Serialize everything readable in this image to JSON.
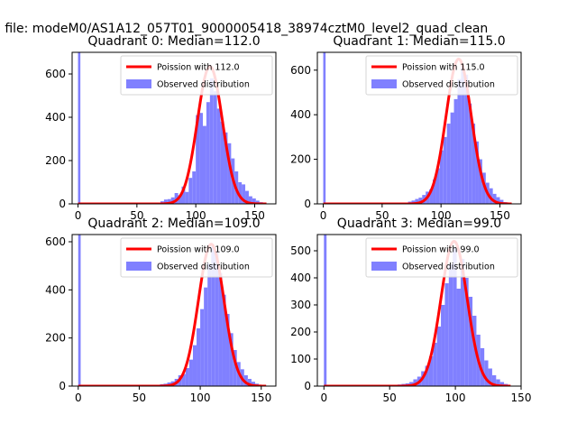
{
  "figure": {
    "suptitle": "n file: modeM0/AS1A12_057T01_9000005418_38974cztM0_level2_quad_clean"
  },
  "colors": {
    "poisson_line": "#ff0000",
    "observed_bars": "#8080ff",
    "axes": "#000000",
    "background": "#ffffff"
  },
  "chart_data": [
    {
      "type": "bar",
      "title": "Quadrant 0: Median=112.0",
      "xlabel": "",
      "ylabel": "",
      "xlim": [
        -5,
        168
      ],
      "ylim": [
        0,
        700
      ],
      "xticks": [
        0,
        50,
        100,
        150
      ],
      "yticks": [
        0,
        200,
        400,
        600
      ],
      "grid": false,
      "legend_position": "top-right",
      "legend": [
        "Poission with 112.0",
        "Observed distribution"
      ],
      "series": [
        {
          "name": "Poission with 112.0",
          "kind": "line",
          "mean": 112.0,
          "peak": 635
        },
        {
          "name": "Observed distribution",
          "kind": "histogram",
          "bins": [
            [
              0,
              2,
              700
            ],
            [
              64,
              67,
              3
            ],
            [
              67,
              70,
              5
            ],
            [
              70,
              73,
              12
            ],
            [
              73,
              76,
              20
            ],
            [
              76,
              79,
              22
            ],
            [
              79,
              82,
              30
            ],
            [
              82,
              85,
              50
            ],
            [
              85,
              88,
              40
            ],
            [
              88,
              91,
              80
            ],
            [
              91,
              94,
              55
            ],
            [
              94,
              97,
              120
            ],
            [
              97,
              100,
              150
            ],
            [
              100,
              103,
              410
            ],
            [
              103,
              106,
              420
            ],
            [
              106,
              109,
              360
            ],
            [
              109,
              112,
              470
            ],
            [
              112,
              115,
              580
            ],
            [
              115,
              118,
              520
            ],
            [
              118,
              121,
              440
            ],
            [
              121,
              124,
              380
            ],
            [
              124,
              127,
              330
            ],
            [
              127,
              130,
              280
            ],
            [
              130,
              133,
              210
            ],
            [
              133,
              136,
              150
            ],
            [
              136,
              139,
              100
            ],
            [
              139,
              142,
              90
            ],
            [
              142,
              145,
              60
            ],
            [
              145,
              148,
              35
            ],
            [
              148,
              151,
              25
            ],
            [
              151,
              154,
              15
            ],
            [
              154,
              157,
              8
            ]
          ]
        }
      ]
    },
    {
      "type": "bar",
      "title": "Quadrant 1: Median=115.0",
      "xlabel": "",
      "ylabel": "",
      "xlim": [
        -5,
        168
      ],
      "ylim": [
        0,
        680
      ],
      "xticks": [
        0,
        50,
        100,
        150
      ],
      "yticks": [
        0,
        200,
        400,
        600
      ],
      "grid": false,
      "legend_position": "top-right",
      "legend": [
        "Poission with 115.0",
        "Observed distribution"
      ],
      "series": [
        {
          "name": "Poission with 115.0",
          "kind": "line",
          "mean": 115.0,
          "peak": 650
        },
        {
          "name": "Observed distribution",
          "kind": "histogram",
          "bins": [
            [
              0,
              2,
              680
            ],
            [
              66,
              69,
              3
            ],
            [
              69,
              72,
              5
            ],
            [
              72,
              75,
              10
            ],
            [
              75,
              78,
              15
            ],
            [
              78,
              81,
              22
            ],
            [
              81,
              84,
              28
            ],
            [
              84,
              87,
              40
            ],
            [
              87,
              90,
              55
            ],
            [
              90,
              93,
              65
            ],
            [
              93,
              96,
              110
            ],
            [
              96,
              99,
              160
            ],
            [
              99,
              102,
              240
            ],
            [
              102,
              105,
              300
            ],
            [
              105,
              108,
              360
            ],
            [
              108,
              111,
              410
            ],
            [
              111,
              114,
              470
            ],
            [
              114,
              117,
              560
            ],
            [
              117,
              120,
              620
            ],
            [
              120,
              123,
              580
            ],
            [
              123,
              126,
              450
            ],
            [
              126,
              129,
              360
            ],
            [
              129,
              132,
              280
            ],
            [
              132,
              135,
              200
            ],
            [
              135,
              138,
              140
            ],
            [
              138,
              141,
              95
            ],
            [
              141,
              144,
              70
            ],
            [
              144,
              147,
              45
            ],
            [
              147,
              150,
              30
            ],
            [
              150,
              153,
              18
            ],
            [
              153,
              156,
              8
            ]
          ]
        }
      ]
    },
    {
      "type": "bar",
      "title": "Quadrant 2: Median=109.0",
      "xlabel": "",
      "ylabel": "",
      "xlim": [
        -5,
        162
      ],
      "ylim": [
        0,
        630
      ],
      "xticks": [
        0,
        50,
        100,
        150
      ],
      "yticks": [
        0,
        200,
        400,
        600
      ],
      "grid": false,
      "legend_position": "top-right",
      "legend": [
        "Poission with 109.0",
        "Observed distribution"
      ],
      "series": [
        {
          "name": "Poission with 109.0",
          "kind": "line",
          "mean": 109.0,
          "peak": 590
        },
        {
          "name": "Observed distribution",
          "kind": "histogram",
          "bins": [
            [
              0,
              2,
              630
            ],
            [
              64,
              67,
              5
            ],
            [
              67,
              70,
              8
            ],
            [
              70,
              73,
              10
            ],
            [
              73,
              76,
              15
            ],
            [
              76,
              79,
              20
            ],
            [
              79,
              82,
              30
            ],
            [
              82,
              85,
              45
            ],
            [
              85,
              88,
              50
            ],
            [
              88,
              91,
              75
            ],
            [
              91,
              94,
              110
            ],
            [
              94,
              97,
              170
            ],
            [
              97,
              100,
              240
            ],
            [
              100,
              103,
              320
            ],
            [
              103,
              106,
              410
            ],
            [
              106,
              109,
              510
            ],
            [
              109,
              112,
              580
            ],
            [
              112,
              115,
              560
            ],
            [
              115,
              118,
              470
            ],
            [
              118,
              121,
              380
            ],
            [
              121,
              124,
              300
            ],
            [
              124,
              127,
              220
            ],
            [
              127,
              130,
              150
            ],
            [
              130,
              133,
              100
            ],
            [
              133,
              136,
              70
            ],
            [
              136,
              139,
              45
            ],
            [
              139,
              142,
              30
            ],
            [
              142,
              145,
              18
            ],
            [
              145,
              148,
              10
            ],
            [
              148,
              151,
              5
            ]
          ]
        }
      ]
    },
    {
      "type": "bar",
      "title": "Quadrant 3: Median=99.0",
      "xlabel": "",
      "ylabel": "",
      "xlim": [
        -5,
        150
      ],
      "ylim": [
        0,
        560
      ],
      "xticks": [
        0,
        50,
        100,
        150
      ],
      "yticks": [
        0,
        100,
        200,
        300,
        400,
        500
      ],
      "grid": false,
      "legend_position": "top-right",
      "legend": [
        "Poission with 99.0",
        "Observed distribution"
      ],
      "series": [
        {
          "name": "Poission with 99.0",
          "kind": "line",
          "mean": 99.0,
          "peak": 535
        },
        {
          "name": "Observed distribution",
          "kind": "histogram",
          "bins": [
            [
              0,
              2,
              560
            ],
            [
              50,
              53,
              3
            ],
            [
              53,
              56,
              4
            ],
            [
              56,
              59,
              6
            ],
            [
              59,
              62,
              8
            ],
            [
              62,
              65,
              10
            ],
            [
              65,
              68,
              15
            ],
            [
              68,
              71,
              25
            ],
            [
              71,
              74,
              35
            ],
            [
              74,
              77,
              55
            ],
            [
              77,
              80,
              75
            ],
            [
              80,
              83,
              110
            ],
            [
              83,
              86,
              160
            ],
            [
              86,
              89,
              220
            ],
            [
              89,
              92,
              300
            ],
            [
              92,
              95,
              380
            ],
            [
              95,
              98,
              450
            ],
            [
              98,
              101,
              510
            ],
            [
              101,
              104,
              360
            ],
            [
              104,
              107,
              470
            ],
            [
              107,
              110,
              400
            ],
            [
              110,
              113,
              330
            ],
            [
              113,
              116,
              260
            ],
            [
              116,
              119,
              190
            ],
            [
              119,
              122,
              140
            ],
            [
              122,
              125,
              95
            ],
            [
              125,
              128,
              65
            ],
            [
              128,
              131,
              40
            ],
            [
              131,
              134,
              25
            ],
            [
              134,
              137,
              15
            ],
            [
              137,
              140,
              8
            ]
          ]
        }
      ]
    }
  ]
}
